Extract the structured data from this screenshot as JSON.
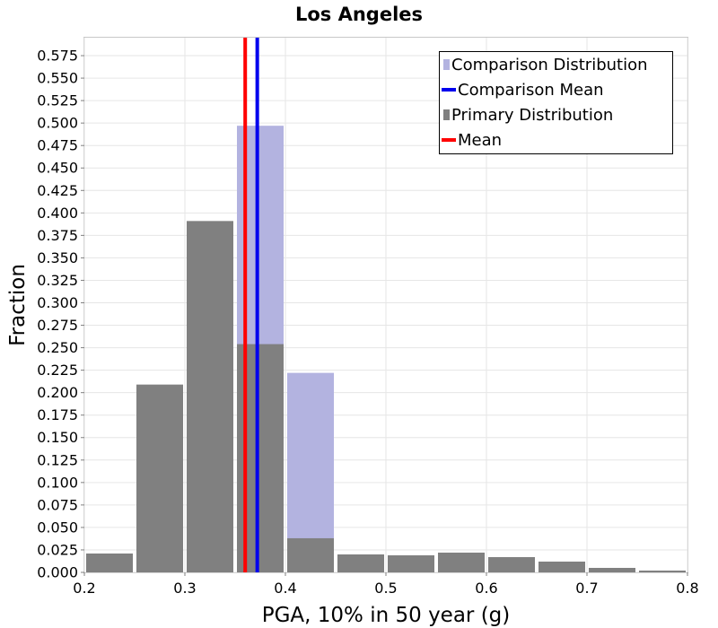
{
  "chart_data": {
    "type": "bar",
    "title": "Los Angeles",
    "xlabel": "PGA, 10% in 50 year (g)",
    "ylabel": "Fraction",
    "xlim": [
      0.2,
      0.8
    ],
    "ylim": [
      0,
      0.595
    ],
    "bin_width": 0.05,
    "x_ticks": [
      "0.2",
      "0.3",
      "0.4",
      "0.5",
      "0.6",
      "0.7",
      "0.8"
    ],
    "y_ticks": [
      "0.000",
      "0.025",
      "0.050",
      "0.075",
      "0.100",
      "0.125",
      "0.150",
      "0.175",
      "0.200",
      "0.225",
      "0.250",
      "0.275",
      "0.300",
      "0.325",
      "0.350",
      "0.375",
      "0.400",
      "0.425",
      "0.450",
      "0.475",
      "0.500",
      "0.525",
      "0.550",
      "0.575"
    ],
    "grid": true,
    "legend_position": "top-right",
    "series": [
      {
        "name": "Comparison Distribution",
        "kind": "histogram",
        "color": "#b3b3e0",
        "bin_centers": [
          0.375,
          0.425
        ],
        "values": [
          0.497,
          0.222
        ]
      },
      {
        "name": "Primary Distribution",
        "kind": "histogram",
        "color": "#808080",
        "bin_centers": [
          0.225,
          0.275,
          0.325,
          0.375,
          0.425,
          0.475,
          0.525,
          0.575,
          0.625,
          0.675,
          0.725,
          0.775
        ],
        "values": [
          0.021,
          0.209,
          0.391,
          0.254,
          0.038,
          0.02,
          0.019,
          0.022,
          0.017,
          0.012,
          0.005,
          0.002
        ]
      },
      {
        "name": "Comparison Mean",
        "kind": "vline",
        "color": "#0000ee",
        "x": 0.372
      },
      {
        "name": "Mean",
        "kind": "vline",
        "color": "#ff0000",
        "x": 0.36
      }
    ],
    "legend_entries": [
      "Comparison Distribution",
      "Comparison Mean",
      "Primary Distribution",
      "Mean"
    ]
  }
}
